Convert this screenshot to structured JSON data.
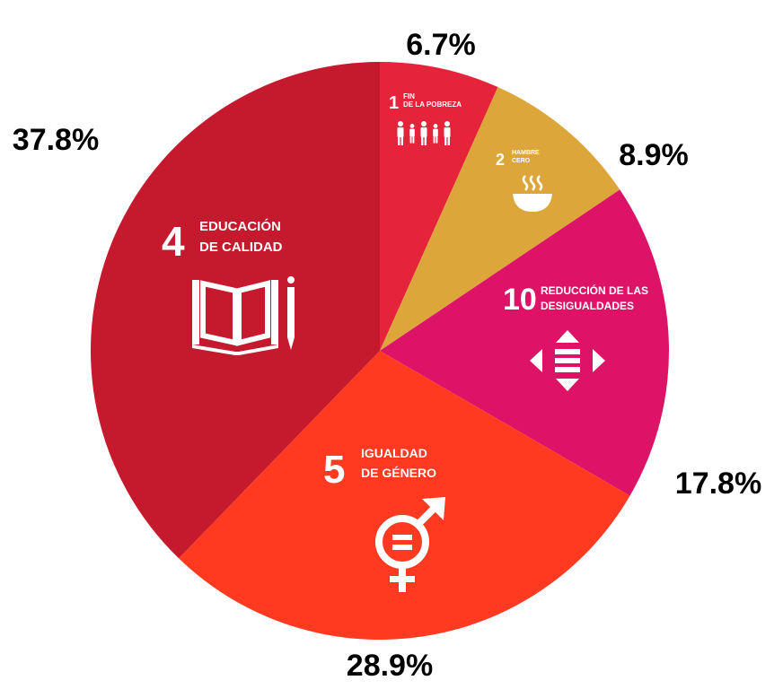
{
  "chart_data": {
    "type": "pie",
    "title": "",
    "slices": [
      {
        "number": "1",
        "name_lines": [
          "FIN",
          "DE LA POBREZA"
        ],
        "value": 6.7,
        "label": "6.7%",
        "color": "#E5243B",
        "icon": "family-icon"
      },
      {
        "number": "2",
        "name_lines": [
          "HAMBRE",
          "CERO"
        ],
        "value": 8.9,
        "label": "8.9%",
        "color": "#DDA63A",
        "icon": "bowl-icon"
      },
      {
        "number": "10",
        "name_lines": [
          "REDUCCIÓN DE LAS",
          "DESIGUALDADES"
        ],
        "value": 17.8,
        "label": "17.8%",
        "color": "#DD1367",
        "icon": "equality-arrows-icon"
      },
      {
        "number": "5",
        "name_lines": [
          "IGUALDAD",
          "DE GÉNERO"
        ],
        "value": 28.9,
        "label": "28.9%",
        "color": "#FF3A21",
        "icon": "gender-equality-icon"
      },
      {
        "number": "4",
        "name_lines": [
          "EDUCACIÓN",
          "DE CALIDAD"
        ],
        "value": 37.8,
        "label": "37.8%",
        "color": "#C5192D",
        "icon": "book-pencil-icon"
      }
    ]
  }
}
